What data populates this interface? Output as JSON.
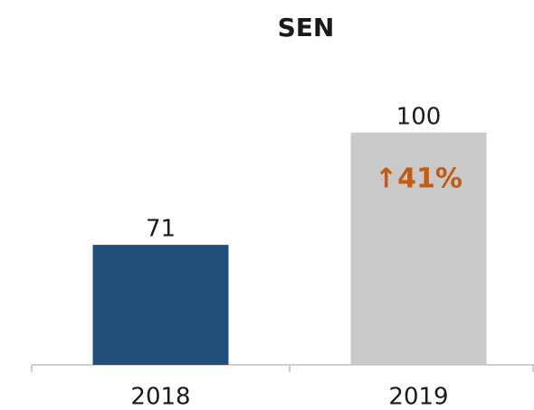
{
  "chart_data": {
    "type": "bar",
    "title": "SEN",
    "categories": [
      "2018",
      "2019"
    ],
    "values": [
      71,
      100
    ],
    "colors": [
      "#1f4e79",
      "#c9c9c9"
    ],
    "ylim": [
      40,
      110
    ],
    "annotation": "↑41%",
    "annotation_color": "#c55a11"
  }
}
